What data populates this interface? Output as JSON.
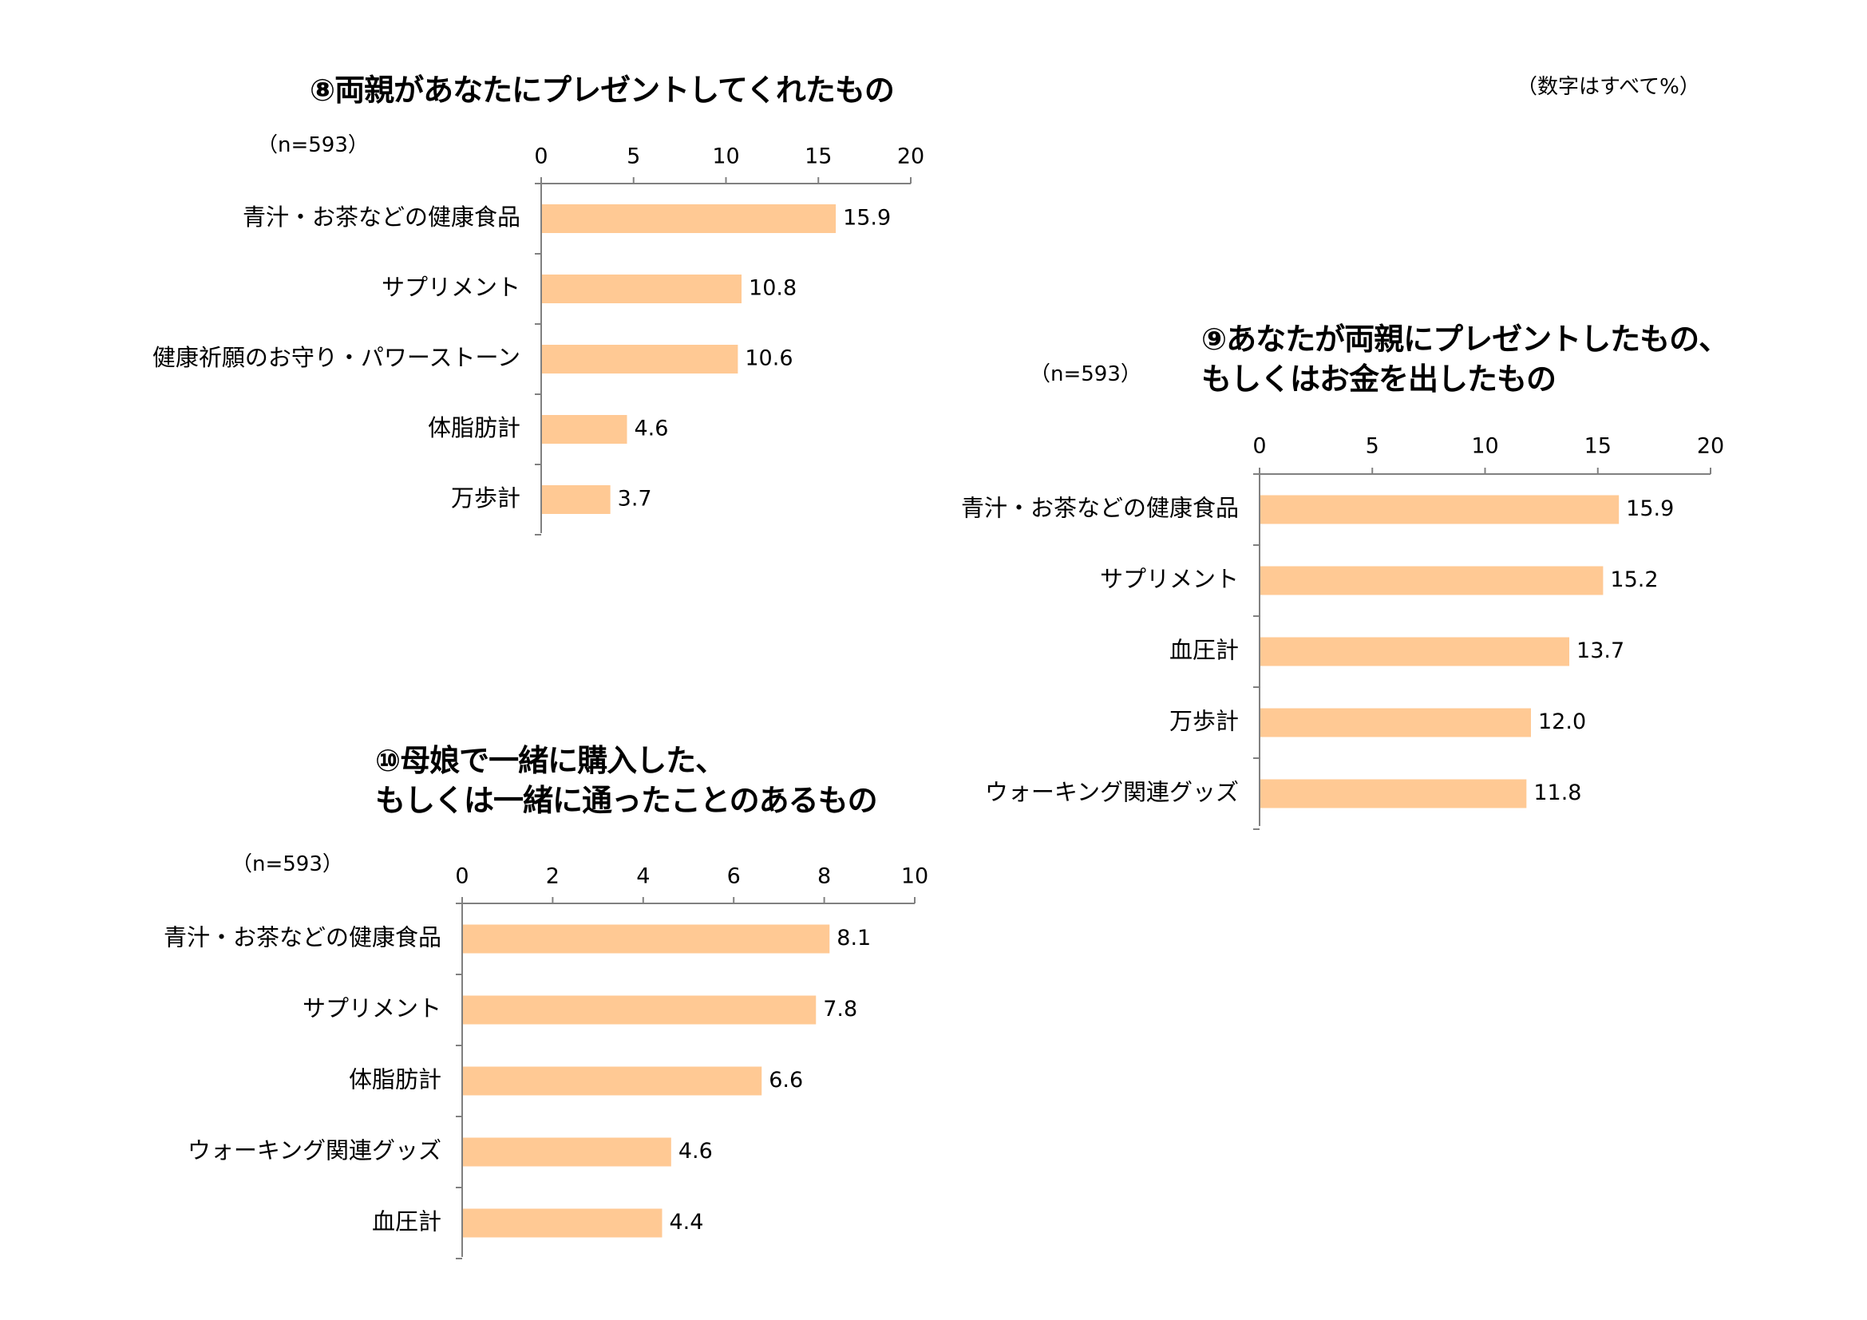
{
  "page_note": "（数字はすべて%）",
  "colors": {
    "bar": "#FFC994",
    "axis": "#808080"
  },
  "chart_data": [
    {
      "id": "chart8",
      "type": "bar",
      "orientation": "horizontal",
      "title": "⑧両親があなたにプレゼントしてくれたもの",
      "n_label": "（n=593）",
      "categories": [
        "青汁・お茶などの健康食品",
        "サプリメント",
        "健康祈願のお守り・パワーストーン",
        "体脂肪計",
        "万歩計"
      ],
      "values": [
        15.9,
        10.8,
        10.6,
        4.6,
        3.7
      ],
      "value_labels": [
        "15.9",
        "10.8",
        "10.6",
        "4.6",
        "3.7"
      ],
      "xlim": [
        0,
        20
      ],
      "ticks": [
        0,
        5,
        10,
        15,
        20
      ],
      "tick_labels": [
        "0",
        "5",
        "10",
        "15",
        "20"
      ],
      "axis_position": "top",
      "grid": false
    },
    {
      "id": "chart9",
      "type": "bar",
      "orientation": "horizontal",
      "title": "⑨あなたが両親にプレゼントしたもの、\nもしくはお金を出したもの",
      "n_label": "（n=593）",
      "categories": [
        "青汁・お茶などの健康食品",
        "サプリメント",
        "血圧計",
        "万歩計",
        "ウォーキング関連グッズ"
      ],
      "values": [
        15.9,
        15.2,
        13.7,
        12.0,
        11.8
      ],
      "value_labels": [
        "15.9",
        "15.2",
        "13.7",
        "12.0",
        "11.8"
      ],
      "xlim": [
        0,
        20
      ],
      "ticks": [
        0,
        5,
        10,
        15,
        20
      ],
      "tick_labels": [
        "0",
        "5",
        "10",
        "15",
        "20"
      ],
      "axis_position": "top",
      "grid": false
    },
    {
      "id": "chart10",
      "type": "bar",
      "orientation": "horizontal",
      "title": "⑩母娘で一緒に購入した、\nもしくは一緒に通ったことのあるもの",
      "n_label": "（n=593）",
      "categories": [
        "青汁・お茶などの健康食品",
        "サプリメント",
        "体脂肪計",
        "ウォーキング関連グッズ",
        "血圧計"
      ],
      "values": [
        8.1,
        7.8,
        6.6,
        4.6,
        4.4
      ],
      "value_labels": [
        "8.1",
        "7.8",
        "6.6",
        "4.6",
        "4.4"
      ],
      "xlim": [
        0,
        10
      ],
      "ticks": [
        0,
        2,
        4,
        6,
        8,
        10
      ],
      "tick_labels": [
        "0",
        "2",
        "4",
        "6",
        "8",
        "10"
      ],
      "axis_position": "top",
      "grid": false
    }
  ]
}
